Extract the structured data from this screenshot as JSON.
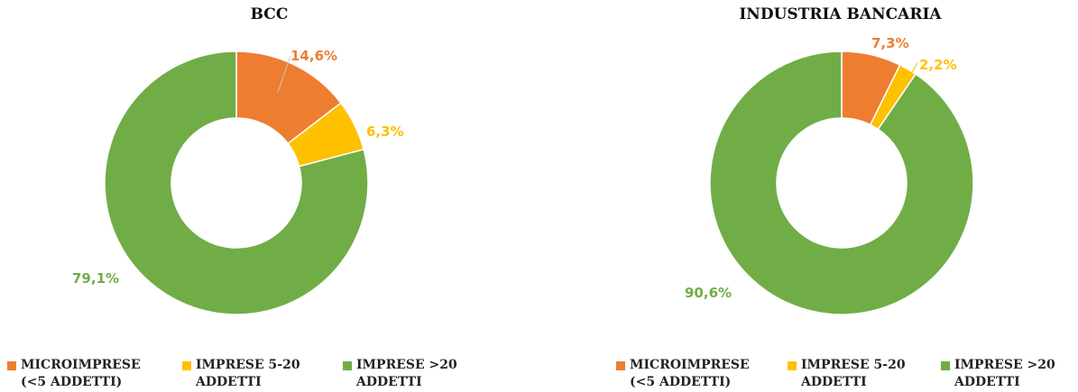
{
  "chart_data": [
    {
      "type": "pie",
      "variant": "donut",
      "title": "BCC",
      "categories": [
        "MICROIMPRESE (<5 ADDETTI)",
        "IMPRESE 5-20 ADDETTI",
        "IMPRESE >20 ADDETTI"
      ],
      "values": [
        14.6,
        6.3,
        79.1
      ],
      "value_labels": [
        "14,6%",
        "6,3%",
        "79,1%"
      ],
      "colors": [
        "#ed7d31",
        "#ffc000",
        "#70ad47"
      ],
      "legend_position": "bottom"
    },
    {
      "type": "pie",
      "variant": "donut",
      "title": "INDUSTRIA BANCARIA",
      "categories": [
        "MICROIMPRESE (<5 ADDETTI)",
        "IMPRESE 5-20 ADDETTI",
        "IMPRESE >20 ADDETTI"
      ],
      "values": [
        7.3,
        2.2,
        90.6
      ],
      "value_labels": [
        "7,3%",
        "2,2%",
        "90,6%"
      ],
      "colors": [
        "#ed7d31",
        "#ffc000",
        "#70ad47"
      ],
      "legend_position": "bottom"
    }
  ],
  "legend": {
    "items": [
      {
        "line1": "MICROIMPRESE",
        "line2": "(<5 ADDETTI)"
      },
      {
        "line1": "IMPRESE 5-20",
        "line2": "ADDETTI"
      },
      {
        "line1": "IMPRESE >20",
        "line2": "ADDETTI"
      }
    ]
  }
}
